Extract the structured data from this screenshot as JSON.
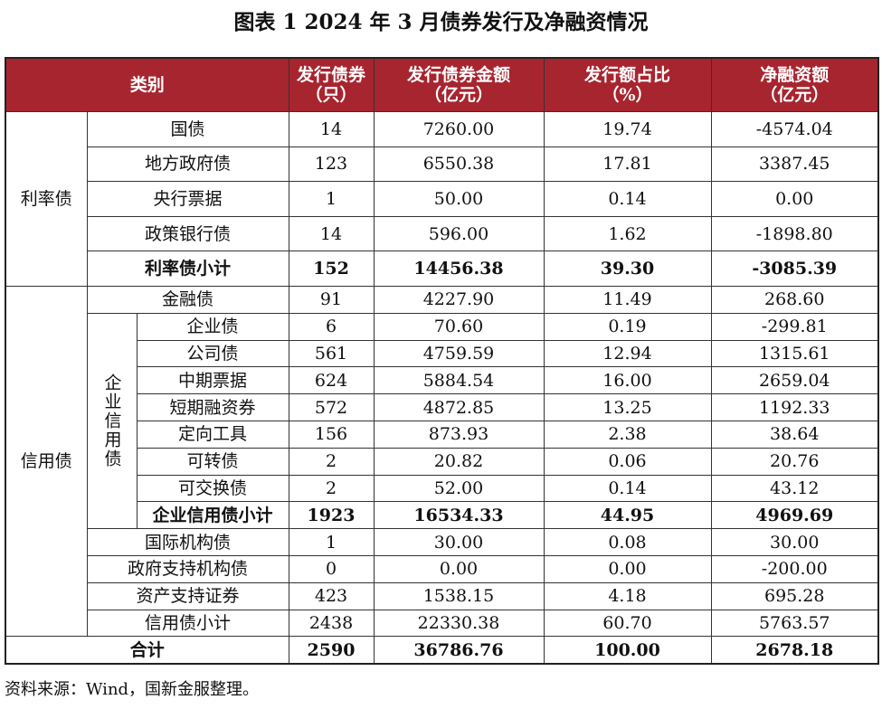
{
  "title": "图表 1  2024 年 3 月债券发行及净融资情况",
  "header": {
    "category": "类别",
    "columns": [
      [
        "发行债券",
        "（只）"
      ],
      [
        "发行债券金额",
        "（亿元）"
      ],
      [
        "发行额占比",
        "（%）"
      ],
      [
        "净融资额",
        "（亿元）"
      ]
    ]
  },
  "rate_bonds": {
    "label": "利率债",
    "rows": [
      [
        "国债",
        "14",
        "7260.00",
        "19.74",
        "-4574.04"
      ],
      [
        "地方政府债",
        "123",
        "6550.38",
        "17.81",
        "3387.45"
      ],
      [
        "央行票据",
        "1",
        "50.00",
        "0.14",
        "0.00"
      ],
      [
        "政策银行债",
        "14",
        "596.00",
        "1.62",
        "-1898.80"
      ],
      [
        "利率债小计",
        "152",
        "14456.38",
        "39.30",
        "-3085.39"
      ]
    ]
  },
  "credit_bonds": {
    "label": "信用债",
    "financial": [
      "金融债",
      "91",
      "4227.90",
      "11.49",
      "268.60"
    ],
    "corporate": {
      "label": "企业信用债",
      "rows": [
        [
          "企业债",
          "6",
          "70.60",
          "0.19",
          "-299.81"
        ],
        [
          "公司债",
          "561",
          "4759.59",
          "12.94",
          "1315.61"
        ],
        [
          "中期票据",
          "624",
          "5884.54",
          "16.00",
          "2659.04"
        ],
        [
          "短期融资券",
          "572",
          "4872.85",
          "13.25",
          "1192.33"
        ],
        [
          "定向工具",
          "156",
          "873.93",
          "2.38",
          "38.64"
        ],
        [
          "可转债",
          "2",
          "20.82",
          "0.06",
          "20.76"
        ],
        [
          "可交换债",
          "2",
          "52.00",
          "0.14",
          "43.12"
        ],
        [
          "企业信用债小计",
          "1923",
          "16534.33",
          "44.95",
          "4969.69"
        ]
      ]
    },
    "others": [
      [
        "国际机构债",
        "1",
        "30.00",
        "0.08",
        "30.00"
      ],
      [
        "政府支持机构债",
        "0",
        "0.00",
        "0.00",
        "-200.00"
      ],
      [
        "资产支持证券",
        "423",
        "1538.15",
        "4.18",
        "695.28"
      ],
      [
        "信用债小计",
        "2438",
        "22330.38",
        "60.70",
        "5763.57"
      ]
    ]
  },
  "total": [
    "合计",
    "2590",
    "36786.76",
    "100.00",
    "2678.18"
  ],
  "source": "资料来源：Wind，国新金服整理。"
}
